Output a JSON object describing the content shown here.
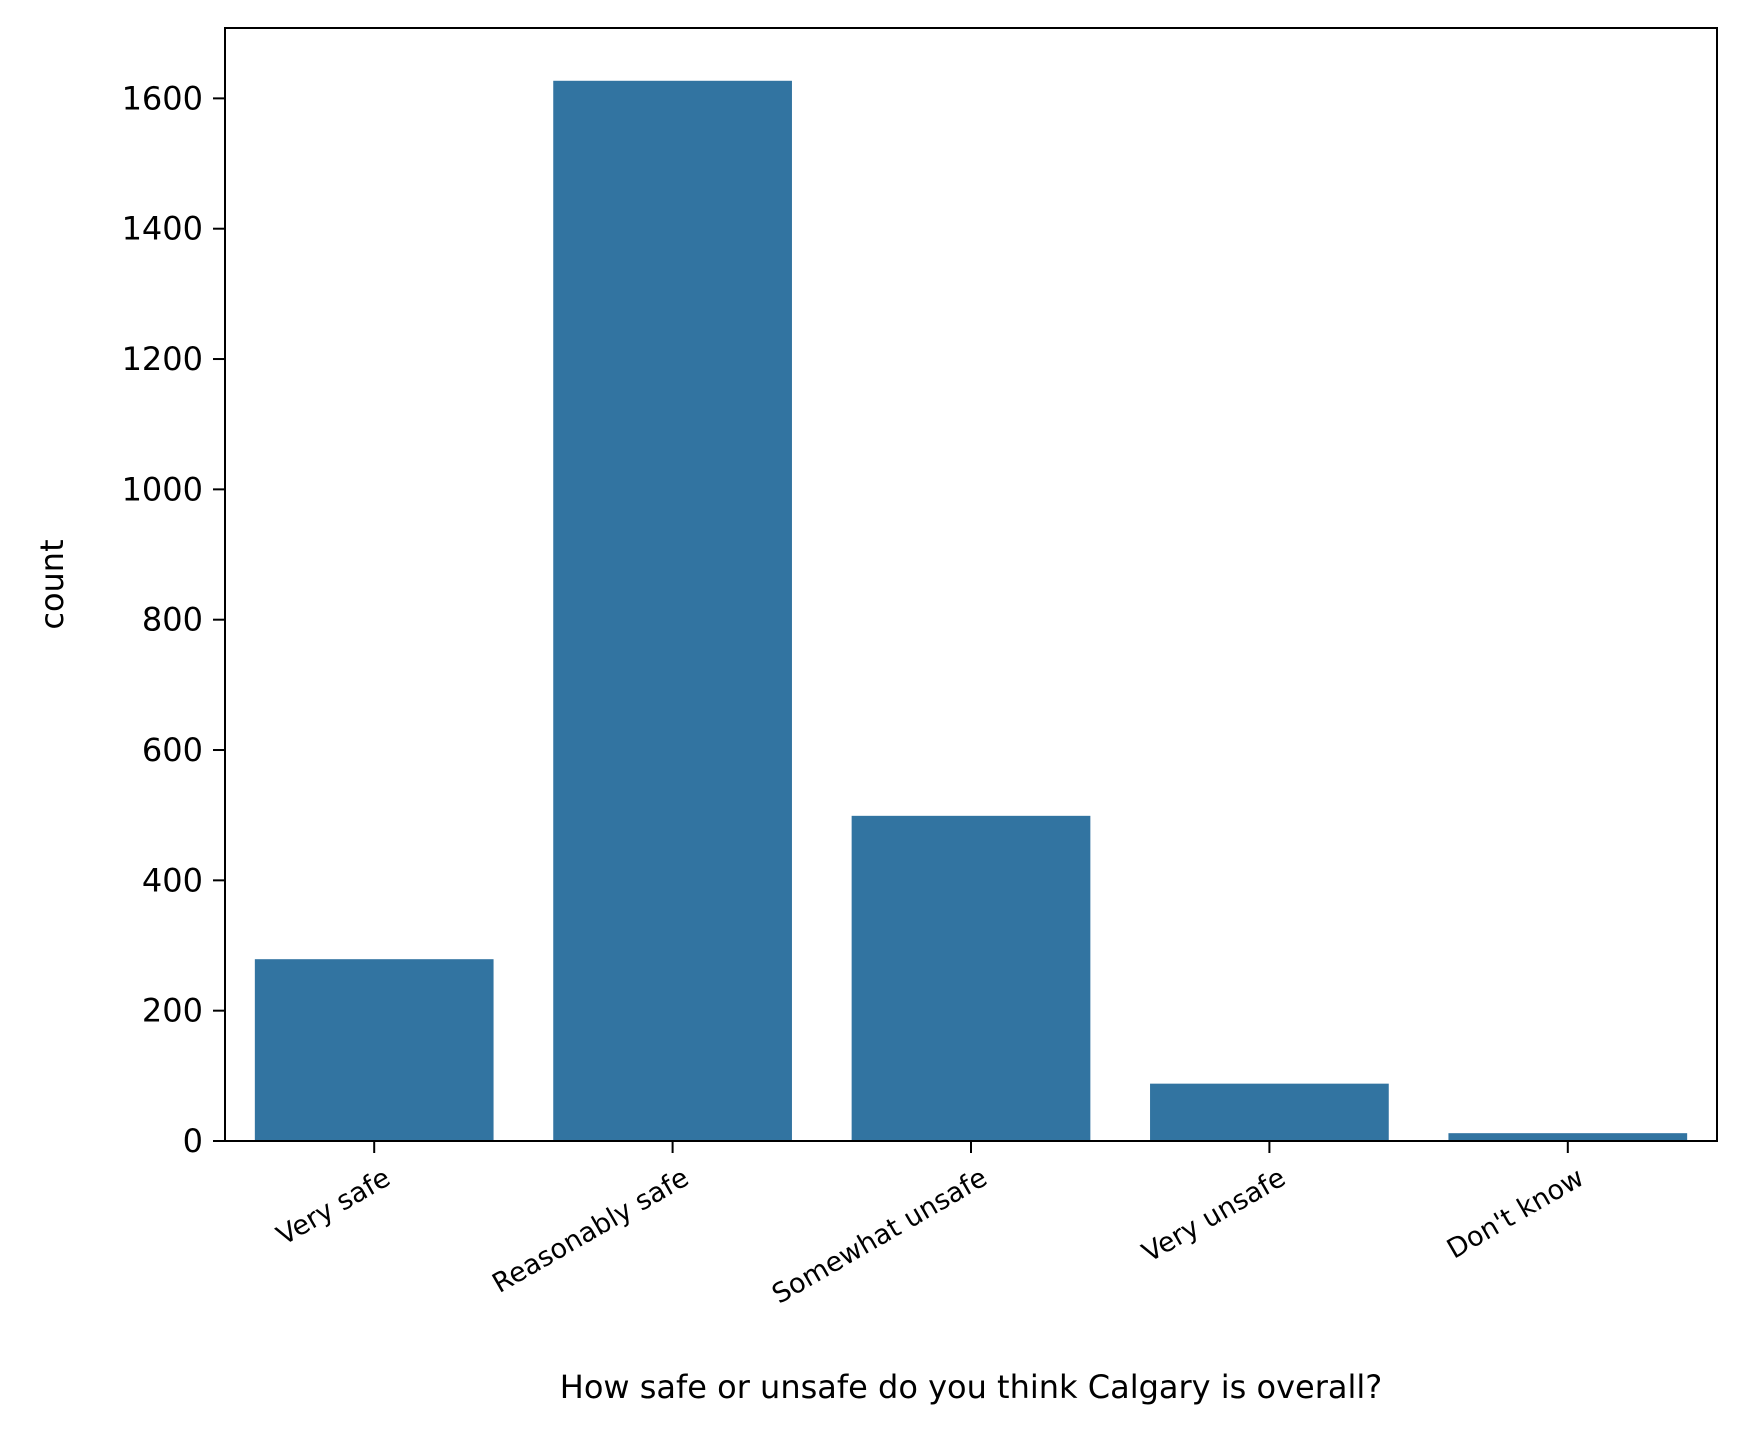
{
  "chart_data": {
    "type": "bar",
    "title": "",
    "xlabel": "How safe or unsafe do you think Calgary is overall?",
    "ylabel": "count",
    "categories": [
      "Very safe",
      "Reasonably safe",
      "Somewhat unsafe",
      "Very unsafe",
      "Don't know"
    ],
    "values": [
      279,
      1627,
      499,
      88,
      12
    ],
    "ylim": [
      0,
      1708
    ],
    "yticks": [
      0,
      200,
      400,
      600,
      800,
      1000,
      1200,
      1400,
      1600
    ],
    "grid": false,
    "legend": "none",
    "bar_color": "#3274a1",
    "x_tick_rotation": 30
  }
}
